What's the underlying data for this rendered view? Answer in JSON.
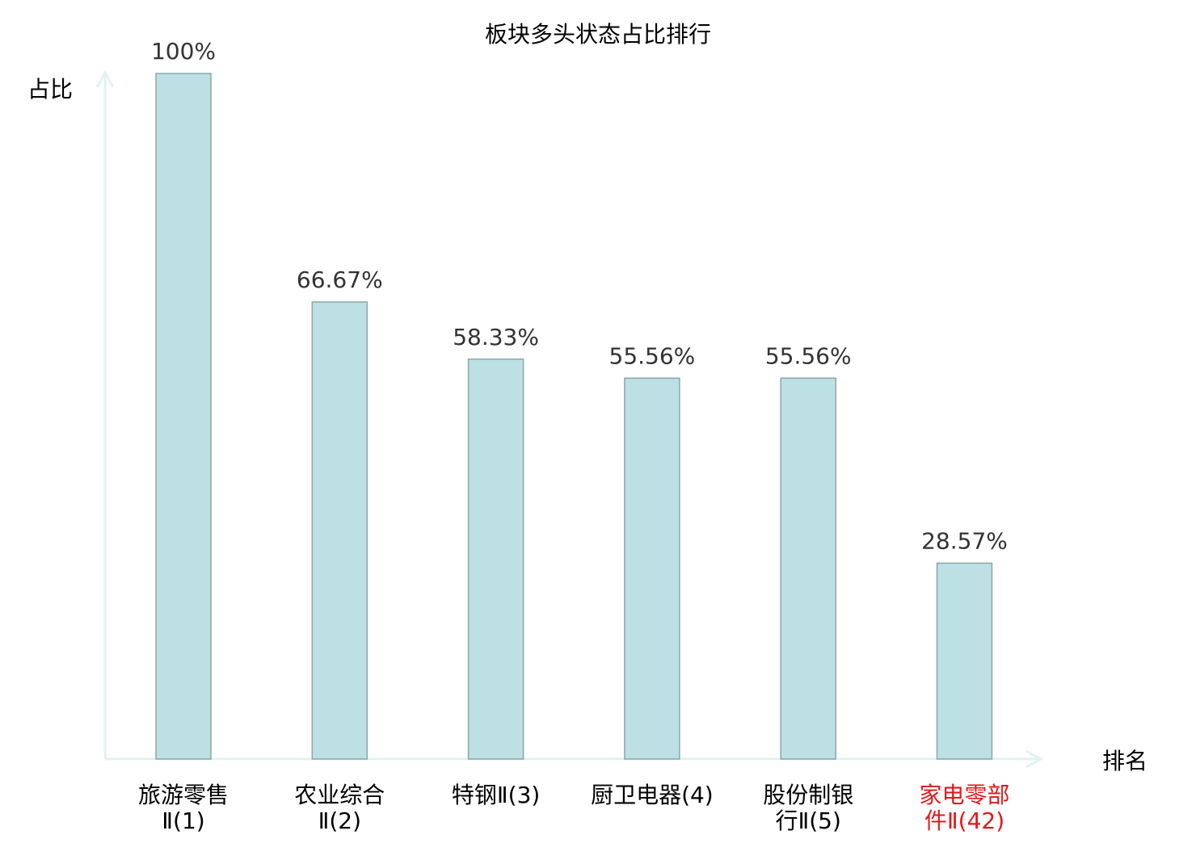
{
  "chart_data": {
    "type": "bar",
    "title": "板块多头状态占比排行",
    "ylabel": "占比",
    "xlabel": "排名",
    "categories": [
      {
        "line1": "旅游零售",
        "line2": "Ⅱ(1)"
      },
      {
        "line1": "农业综合",
        "line2": "Ⅱ(2)"
      },
      {
        "line1": "特钢Ⅱ(3)",
        "line2": ""
      },
      {
        "line1": "厨卫电器(4)",
        "line2": ""
      },
      {
        "line1": "股份制银",
        "line2": "行Ⅱ(5)"
      },
      {
        "line1": "家电零部",
        "line2": "件Ⅱ(42)"
      }
    ],
    "values": [
      100,
      66.67,
      58.33,
      55.56,
      55.56,
      28.57
    ],
    "value_labels": [
      "100%",
      "66.67%",
      "58.33%",
      "55.56%",
      "55.56%",
      "28.57%"
    ],
    "highlight_index": 5,
    "ylim": [
      0,
      100
    ],
    "grid": false,
    "colors": {
      "bar_fill": "#bce0e3",
      "bar_stroke": "#8aa8aa",
      "axis": "#e2f2f0",
      "text": "#333333",
      "highlight": "#e0191b"
    }
  }
}
